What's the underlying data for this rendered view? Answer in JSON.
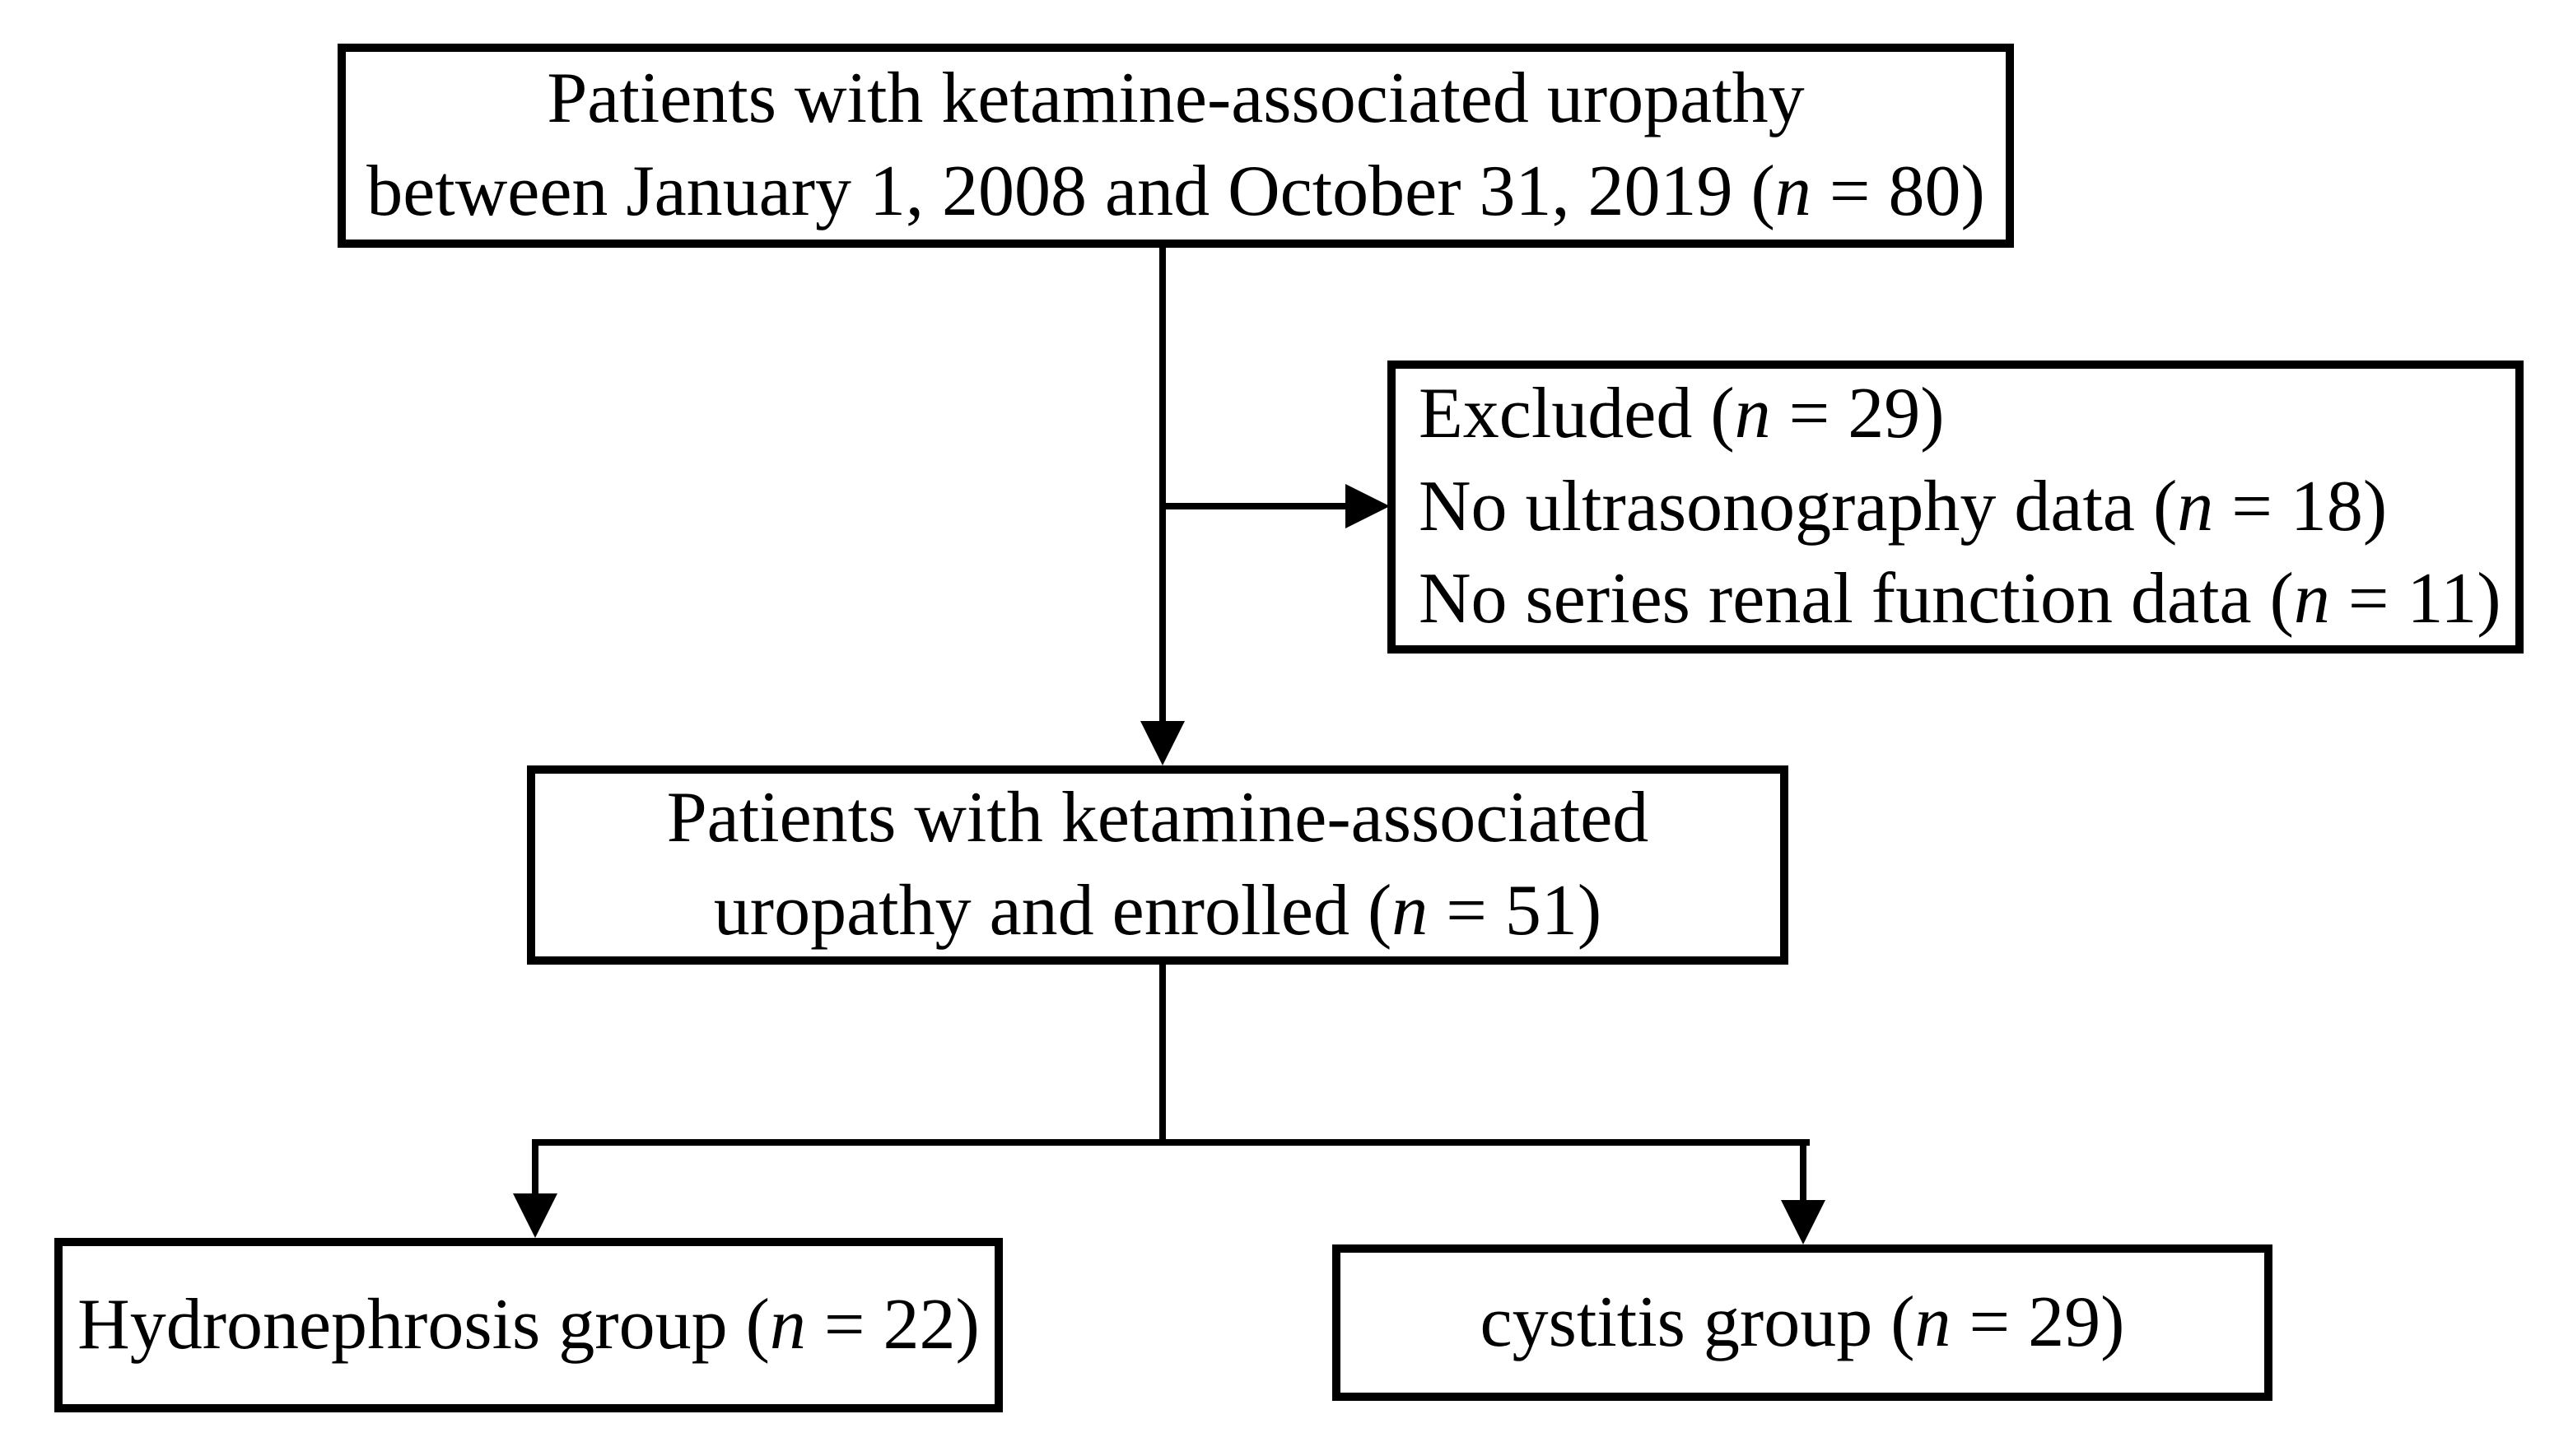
{
  "colors": {
    "background": "#ffffff",
    "box_border": "#000000",
    "text": "#000000",
    "connector": "#000000"
  },
  "flowchart": {
    "top_box": {
      "lines": [
        [
          {
            "text": "Patients with ketamine-associated uropathy"
          }
        ],
        [
          {
            "text": "between January 1, 2008 and October 31, 2019 ("
          },
          {
            "text": "n",
            "italic": true
          },
          {
            "text": " = 80)"
          }
        ]
      ]
    },
    "excluded_box": {
      "lines": [
        [
          {
            "text": "Excluded ("
          },
          {
            "text": "n",
            "italic": true
          },
          {
            "text": " = 29)"
          }
        ],
        [
          {
            "text": "No ultrasonography data ("
          },
          {
            "text": "n",
            "italic": true
          },
          {
            "text": " = 18)"
          }
        ],
        [
          {
            "text": "No series renal function data ("
          },
          {
            "text": "n",
            "italic": true
          },
          {
            "text": " = 11)"
          }
        ]
      ]
    },
    "enrolled_box": {
      "lines": [
        [
          {
            "text": "Patients with ketamine-associated"
          }
        ],
        [
          {
            "text": "uropathy and enrolled ("
          },
          {
            "text": "n",
            "italic": true
          },
          {
            "text": " = 51)"
          }
        ]
      ]
    },
    "hydronephrosis_box": {
      "lines": [
        [
          {
            "text": "Hydronephrosis group ("
          },
          {
            "text": "n",
            "italic": true
          },
          {
            "text": " = 22)"
          }
        ]
      ]
    },
    "cystitis_box": {
      "lines": [
        [
          {
            "text": "cystitis group ("
          },
          {
            "text": "n",
            "italic": true
          },
          {
            "text": " = 29)"
          }
        ]
      ]
    }
  }
}
